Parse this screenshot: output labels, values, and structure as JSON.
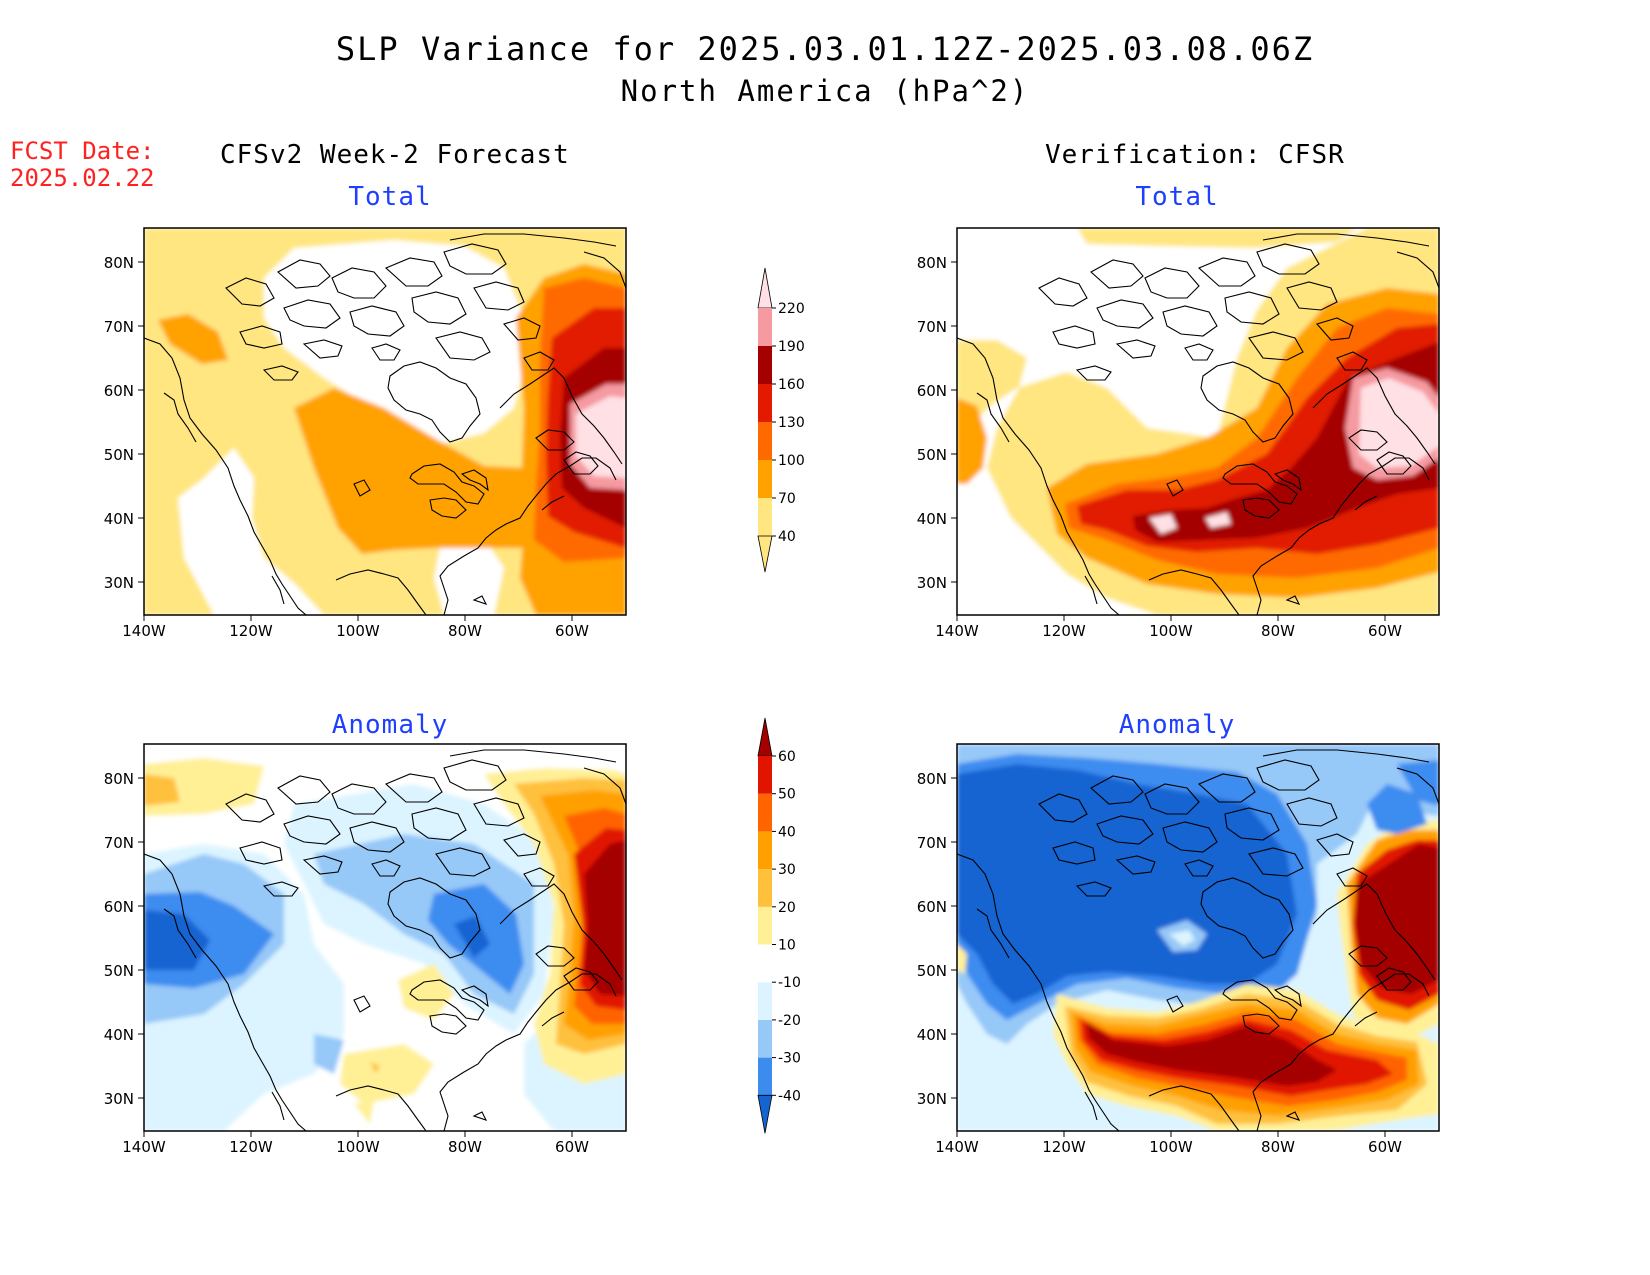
{
  "title": {
    "line1": "SLP Variance for 2025.03.01.12Z-2025.03.08.06Z",
    "line2": "North America (hPa^2)"
  },
  "forecast_date": {
    "label": "FCST Date:",
    "value": "2025.02.22"
  },
  "columns": {
    "left": "CFSv2 Week-2 Forecast",
    "right": "Verification: CFSR"
  },
  "panels": [
    {
      "id": "forecast-total",
      "title": "Total",
      "field": "total",
      "source": "forecast"
    },
    {
      "id": "verification-total",
      "title": "Total",
      "field": "total",
      "source": "verification"
    },
    {
      "id": "forecast-anomaly",
      "title": "Anomaly",
      "field": "anomaly",
      "source": "forecast"
    },
    {
      "id": "verification-anomaly",
      "title": "Anomaly",
      "field": "anomaly",
      "source": "verification"
    }
  ],
  "axes": {
    "lon_labels": [
      "140W",
      "120W",
      "100W",
      "80W",
      "60W"
    ],
    "lat_labels": [
      "80N",
      "70N",
      "60N",
      "50N",
      "40N",
      "30N"
    ]
  },
  "colorbars": {
    "total": {
      "labels": [
        "40",
        "70",
        "100",
        "130",
        "160",
        "190",
        "220"
      ],
      "colors": [
        "#ffe680",
        "#ffa200",
        "#ff6a00",
        "#e11a00",
        "#a50000",
        "#f59aa0",
        "#ffe0e4"
      ]
    },
    "anomaly": {
      "labels": [
        "-40",
        "-30",
        "-20",
        "-10",
        "10",
        "20",
        "30",
        "40",
        "50",
        "60"
      ],
      "colors": [
        "#1464d2",
        "#3c8cf0",
        "#96c8f8",
        "#dcf4ff",
        "#ffffff",
        "#fff096",
        "#ffc03c",
        "#ffa000",
        "#ff6400",
        "#e11400",
        "#a50000"
      ]
    }
  }
}
